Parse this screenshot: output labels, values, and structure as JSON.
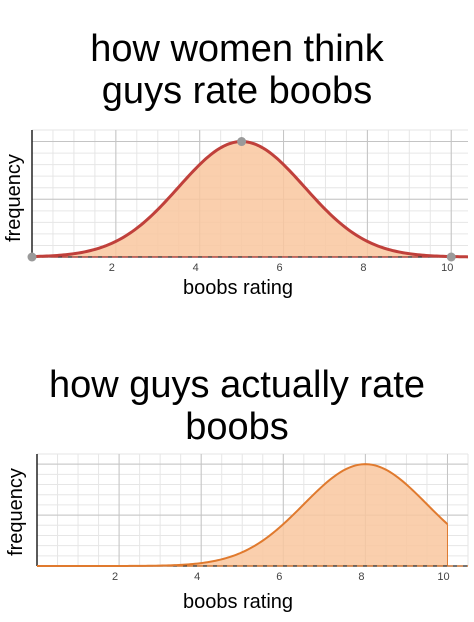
{
  "chart_data": [
    {
      "type": "area",
      "title": "how women think\nguys rate boobs",
      "xlabel": "boobs rating",
      "ylabel": "frequency",
      "xlim": [
        0,
        10.4
      ],
      "ylim": [
        0,
        1.1
      ],
      "xticks": [
        2,
        4,
        6,
        8,
        10
      ],
      "grid": true,
      "curve": {
        "kind": "gaussian",
        "mean": 5,
        "sd": 1.5,
        "peak": 1.0
      },
      "marked_points": [
        {
          "x": 0,
          "y": 0
        },
        {
          "x": 5,
          "y": 1.0
        },
        {
          "x": 10,
          "y": 0
        }
      ],
      "fill_color": "#f9c79f",
      "line_color": "#c0403b",
      "point_color": "#9a9a9a"
    },
    {
      "type": "area",
      "title": "how guys actually rate\nboobs",
      "xlabel": "boobs rating",
      "ylabel": "frequency",
      "xlim": [
        0,
        10.5
      ],
      "ylim": [
        0,
        1.1
      ],
      "xticks": [
        2,
        4,
        6,
        8,
        10
      ],
      "grid": true,
      "curve": {
        "kind": "gaussian",
        "mean": 8,
        "sd": 1.5,
        "peak": 1.0,
        "x_end": 10
      },
      "marked_points": [],
      "fill_color": "#f9c79f",
      "line_color": "#e07a2e",
      "point_color": "#9a9a9a"
    }
  ]
}
